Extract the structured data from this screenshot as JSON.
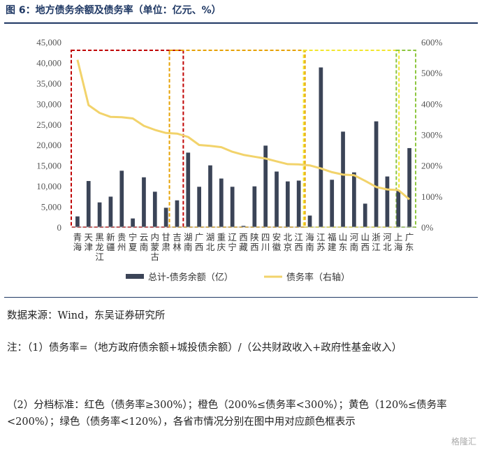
{
  "header": {
    "title": "图 6：地方债务余额及债务率（单位：亿元、%）"
  },
  "chart_data": {
    "type": "bar+line",
    "categories": [
      "青海",
      "天津",
      "黑龙江",
      "新疆",
      "贵州",
      "宁夏",
      "云南",
      "内蒙古",
      "甘肃",
      "吉林",
      "湖南",
      "广西",
      "湖北",
      "重庆",
      "辽宁",
      "西藏",
      "陕西",
      "四川",
      "安徽",
      "北京",
      "江西",
      "海南",
      "江苏",
      "福建",
      "山东",
      "河南",
      "山西",
      "浙江",
      "河北",
      "上海",
      "广东"
    ],
    "category_labels": [
      "青\n海",
      "天\n津",
      "黑\n龙\n江",
      "新\n疆",
      "贵\n州",
      "宁\n夏",
      "云\n南",
      "内\n蒙\n古",
      "甘\n肃",
      "吉\n林",
      "湖\n南",
      "广\n西",
      "湖\n北",
      "重\n庆",
      "辽\n宁",
      "西\n藏",
      "陕\n西",
      "四\n川",
      "安\n徽",
      "北\n京",
      "江\n西",
      "海\n南",
      "江\n苏",
      "福\n建",
      "山\n东",
      "河\n南",
      "山\n西",
      "浙\n江",
      "河\n北",
      "上\n海",
      "广\n东"
    ],
    "series": [
      {
        "name": "总计-债务余额（亿）",
        "type": "bar",
        "axis": "left",
        "values": [
          2600,
          11200,
          6000,
          7400,
          13700,
          2100,
          12100,
          8600,
          4700,
          6500,
          18100,
          9800,
          15000,
          11800,
          9800,
          300,
          9900,
          19800,
          13500,
          11100,
          11300,
          2800,
          38800,
          11500,
          23200,
          13300,
          5700,
          25700,
          12300,
          8900,
          19200
        ]
      },
      {
        "name": "债务率（右轴）",
        "type": "line",
        "axis": "right",
        "values": [
          542,
          395,
          370,
          357,
          356,
          352,
          328,
          315,
          305,
          303,
          292,
          266,
          263,
          259,
          244,
          234,
          228,
          222,
          213,
          204,
          203,
          200,
          190,
          178,
          170,
          168,
          150,
          130,
          122,
          120,
          90
        ]
      }
    ],
    "y_left": {
      "ticks": [
        "0",
        "5,000",
        "10,000",
        "15,000",
        "20,000",
        "25,000",
        "30,000",
        "35,000",
        "40,000",
        "45,000"
      ],
      "min": 0,
      "max": 45000
    },
    "y_right": {
      "ticks": [
        "0%",
        "100%",
        "200%",
        "300%",
        "400%",
        "500%",
        "600%"
      ],
      "min": 0,
      "max": 600
    },
    "bands": [
      {
        "tier": "红色",
        "color": "#c00000",
        "from": "青海",
        "to": "吉林"
      },
      {
        "tier": "橙色",
        "color": "#e6a100",
        "from": "吉林",
        "to": "江西"
      },
      {
        "tier": "黄色",
        "color": "#f2e62e",
        "from": "海南",
        "to": "上海"
      },
      {
        "tier": "绿色",
        "color": "#8dc63f",
        "from": "上海",
        "to": "广东"
      }
    ],
    "colors": {
      "bar": "#3b4457",
      "line": "#f2d36b"
    },
    "grid": false,
    "legend_position": "bottom"
  },
  "notes": {
    "source": "数据来源：Wind，东吴证券研究所",
    "note1": "注：（1）债务率=（地方政府债余额+城投债余额）/（公共财政收入+政府性基金收入）",
    "note2": "（2）分档标准：红色（债务率≥300%）；橙色（200%≤债务率<300%）；黄色（120%≤债务率<200%）；绿色（债务率<120%），各省市情况分别在图中用对应颜色框表示"
  },
  "watermark": "格隆汇"
}
